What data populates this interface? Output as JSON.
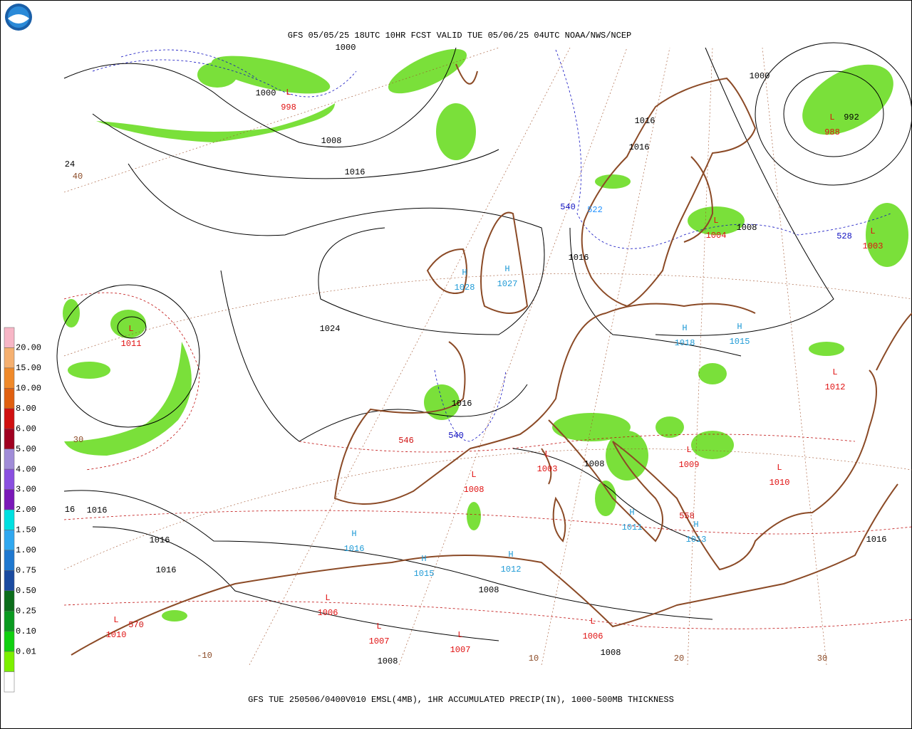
{
  "header": {
    "title": "GFS 05/05/25 18UTC 10HR FCST VALID TUE 05/06/25 04UTC NOAA/NWS/NCEP"
  },
  "footer": {
    "caption": "GFS TUE 250506/0400V010 EMSL(4MB), 1HR ACCUMULATED PRECIP(IN), 1000-500MB THICKNESS"
  },
  "legend": {
    "labels": [
      "20.00",
      "15.00",
      "10.00",
      "8.00",
      "6.00",
      "5.00",
      "4.00",
      "3.00",
      "2.00",
      "1.50",
      "1.00",
      "0.75",
      "0.50",
      "0.25",
      "0.10",
      "0.01"
    ]
  },
  "map": {
    "centers": [
      {
        "letter": "L",
        "value": "998"
      },
      {
        "letter": "L",
        "value": "988"
      },
      {
        "letter": "L",
        "value": "1004"
      },
      {
        "letter": "L",
        "value": "1003"
      },
      {
        "letter": "H",
        "value": "1028"
      },
      {
        "letter": "H",
        "value": "1027"
      },
      {
        "letter": "L",
        "value": "1011"
      },
      {
        "letter": "H",
        "value": "1018"
      },
      {
        "letter": "H",
        "value": "1015"
      },
      {
        "letter": "L",
        "value": "1012"
      },
      {
        "letter": "L",
        "value": "1003"
      },
      {
        "letter": "L",
        "value": "1008"
      },
      {
        "letter": "L",
        "value": "1009"
      },
      {
        "letter": "L",
        "value": "1010"
      },
      {
        "letter": "H",
        "value": "1011"
      },
      {
        "letter": "H",
        "value": "1013"
      },
      {
        "letter": "H",
        "value": "1016"
      },
      {
        "letter": "H",
        "value": "1015"
      },
      {
        "letter": "H",
        "value": "1012"
      },
      {
        "letter": "L",
        "value": "1006"
      },
      {
        "letter": "L",
        "value": "1007"
      },
      {
        "letter": "L",
        "value": "1007"
      },
      {
        "letter": "L",
        "value": "1006"
      },
      {
        "letter": "L",
        "value": "1010"
      }
    ],
    "isobar_labels": [
      "1000",
      "1000",
      "1008",
      "1016",
      "1000",
      "992",
      "1016",
      "1016",
      "1008",
      "1016",
      "1024",
      "1016",
      "1008",
      "16",
      "1016",
      "1016",
      "1016",
      "1008",
      "1008",
      "1008",
      "1016",
      "24"
    ],
    "thickness_labels": [
      {
        "text": "540",
        "color": "#1010c0"
      },
      {
        "text": "522",
        "color": "#1e90ff"
      },
      {
        "text": "528",
        "color": "#1010c0"
      },
      {
        "text": "540",
        "color": "#1010c0"
      },
      {
        "text": "546",
        "color": "#d01010"
      },
      {
        "text": "570",
        "color": "#d01010"
      },
      {
        "text": "558",
        "color": "#d01010"
      },
      {
        "text": "40",
        "color": "#8b4a26"
      },
      {
        "text": "30",
        "color": "#8b4a26"
      },
      {
        "text": "-10",
        "color": "#8b4a26"
      },
      {
        "text": "10",
        "color": "#8b4a26"
      },
      {
        "text": "20",
        "color": "#8b4a26"
      },
      {
        "text": "30",
        "color": "#8b4a26"
      }
    ]
  }
}
